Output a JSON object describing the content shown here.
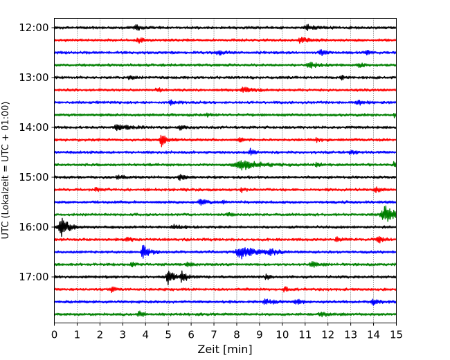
{
  "chart_data": {
    "type": "line",
    "title": "",
    "xlabel": "Zeit  [min]",
    "ylabel": "UTC (Lokalzeit = UTC + 01:00)",
    "xlim": [
      0,
      15
    ],
    "x_ticks": [
      "0",
      "1",
      "2",
      "3",
      "4",
      "5",
      "6",
      "7",
      "8",
      "9",
      "10",
      "11",
      "12",
      "13",
      "14",
      "15"
    ],
    "y_tick_labels": [
      "12:00",
      "13:00",
      "14:00",
      "15:00",
      "16:00",
      "17:00"
    ],
    "grid": "vertical-dotted",
    "row_interval_minutes": 15,
    "colors": [
      "#000000",
      "#ff0000",
      "#0000ff",
      "#008000"
    ],
    "traces": [
      {
        "start": "12:00",
        "color": "#000000",
        "events": [
          [
            3.6,
            0.5,
            0.4
          ],
          [
            11.1,
            0.9,
            0.4
          ]
        ]
      },
      {
        "start": "12:15",
        "color": "#ff0000",
        "events": [
          [
            3.7,
            0.5,
            0.35
          ],
          [
            10.8,
            0.7,
            0.35
          ]
        ]
      },
      {
        "start": "12:30",
        "color": "#0000ff",
        "events": [
          [
            7.2,
            0.5,
            0.3
          ],
          [
            11.7,
            0.5,
            0.35
          ],
          [
            13.7,
            0.4,
            0.3
          ]
        ]
      },
      {
        "start": "12:45",
        "color": "#008000",
        "events": [
          [
            11.2,
            0.6,
            0.5
          ],
          [
            13.4,
            0.4,
            0.3
          ]
        ]
      },
      {
        "start": "13:00",
        "color": "#000000",
        "events": [
          [
            3.3,
            0.4,
            0.3
          ],
          [
            12.6,
            0.3,
            0.3
          ]
        ]
      },
      {
        "start": "13:15",
        "color": "#ff0000",
        "events": [
          [
            4.5,
            0.4,
            0.3
          ],
          [
            8.3,
            0.7,
            0.4
          ]
        ]
      },
      {
        "start": "13:30",
        "color": "#0000ff",
        "events": [
          [
            5.1,
            0.6,
            0.3
          ],
          [
            13.3,
            0.5,
            0.4
          ]
        ]
      },
      {
        "start": "13:45",
        "color": "#008000",
        "events": [
          [
            6.7,
            0.3,
            0.3
          ],
          [
            14.9,
            0.15,
            0.5
          ]
        ]
      },
      {
        "start": "14:00",
        "color": "#000000",
        "events": [
          [
            2.8,
            1.0,
            0.45
          ],
          [
            5.5,
            0.4,
            0.35
          ]
        ]
      },
      {
        "start": "14:15",
        "color": "#ff0000",
        "events": [
          [
            4.7,
            0.45,
            1.0
          ],
          [
            8.1,
            0.4,
            0.35
          ],
          [
            11.5,
            0.4,
            0.3
          ]
        ]
      },
      {
        "start": "14:30",
        "color": "#0000ff",
        "events": [
          [
            8.6,
            0.4,
            0.45
          ],
          [
            13.0,
            0.4,
            0.4
          ]
        ]
      },
      {
        "start": "14:45",
        "color": "#008000",
        "events": [
          [
            8.2,
            1.6,
            0.75
          ],
          [
            11.5,
            0.3,
            0.35
          ],
          [
            14.9,
            0.2,
            0.4
          ]
        ]
      },
      {
        "start": "15:00",
        "color": "#000000",
        "events": [
          [
            5.5,
            0.5,
            0.4
          ],
          [
            2.8,
            0.5,
            0.25
          ]
        ]
      },
      {
        "start": "15:15",
        "color": "#ff0000",
        "events": [
          [
            1.8,
            0.3,
            0.35
          ],
          [
            8.2,
            0.3,
            0.4
          ],
          [
            14.1,
            0.5,
            0.45
          ]
        ]
      },
      {
        "start": "15:30",
        "color": "#0000ff",
        "events": [
          [
            6.4,
            0.6,
            0.4
          ],
          [
            7.4,
            0.3,
            0.3
          ]
        ]
      },
      {
        "start": "15:45",
        "color": "#008000",
        "events": [
          [
            14.5,
            0.9,
            1.4
          ],
          [
            7.6,
            0.4,
            0.25
          ]
        ]
      },
      {
        "start": "16:00",
        "color": "#000000",
        "events": [
          [
            0.3,
            0.7,
            1.5
          ],
          [
            5.2,
            0.8,
            0.35
          ]
        ]
      },
      {
        "start": "16:15",
        "color": "#ff0000",
        "events": [
          [
            3.2,
            0.4,
            0.3
          ],
          [
            12.4,
            0.4,
            0.35
          ],
          [
            14.2,
            0.4,
            0.5
          ]
        ]
      },
      {
        "start": "16:30",
        "color": "#0000ff",
        "events": [
          [
            3.9,
            0.5,
            1.1
          ],
          [
            8.2,
            1.3,
            0.95
          ],
          [
            9.5,
            0.5,
            0.45
          ]
        ]
      },
      {
        "start": "16:45",
        "color": "#008000",
        "events": [
          [
            3.4,
            0.4,
            0.35
          ],
          [
            5.8,
            0.4,
            0.35
          ],
          [
            11.3,
            0.7,
            0.35
          ]
        ]
      },
      {
        "start": "17:00",
        "color": "#000000",
        "events": [
          [
            5.0,
            0.5,
            1.2
          ],
          [
            5.6,
            0.5,
            0.7
          ],
          [
            9.3,
            0.3,
            0.45
          ]
        ]
      },
      {
        "start": "17:15",
        "color": "#ff0000",
        "events": [
          [
            2.5,
            0.4,
            0.35
          ],
          [
            10.1,
            0.4,
            0.35
          ]
        ]
      },
      {
        "start": "17:30",
        "color": "#0000ff",
        "events": [
          [
            9.3,
            0.8,
            0.35
          ],
          [
            10.6,
            0.5,
            0.45
          ],
          [
            14.0,
            0.5,
            0.45
          ]
        ]
      },
      {
        "start": "17:45",
        "color": "#008000",
        "events": [
          [
            3.7,
            0.4,
            0.45
          ],
          [
            11.7,
            0.7,
            0.35
          ]
        ]
      }
    ]
  }
}
